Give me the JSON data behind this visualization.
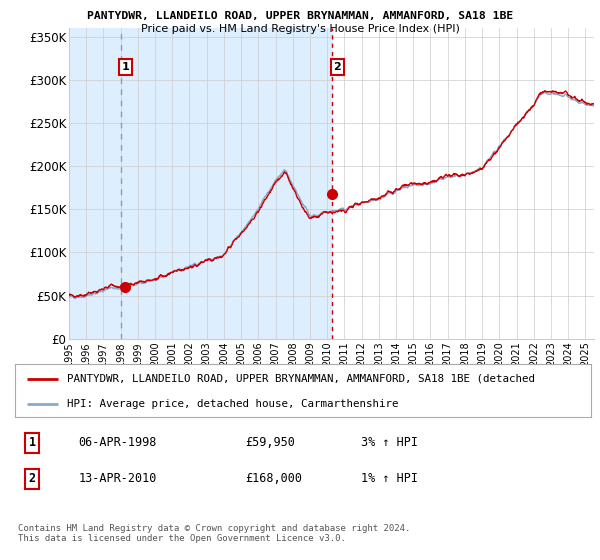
{
  "title1": "PANTYDWR, LLANDEILO ROAD, UPPER BRYNAMMAN, AMMANFORD, SA18 1BE",
  "title2": "Price paid vs. HM Land Registry's House Price Index (HPI)",
  "ylabel_ticks": [
    "£0",
    "£50K",
    "£100K",
    "£150K",
    "£200K",
    "£250K",
    "£300K",
    "£350K"
  ],
  "ylim": [
    0,
    360000
  ],
  "ytick_vals": [
    0,
    50000,
    100000,
    150000,
    200000,
    250000,
    300000,
    350000
  ],
  "legend_line1": "PANTYDWR, LLANDEILO ROAD, UPPER BRYNAMMAN, AMMANFORD, SA18 1BE (detached",
  "legend_line2": "HPI: Average price, detached house, Carmarthenshire",
  "annotation1_label": "1",
  "annotation1_date": "06-APR-1998",
  "annotation1_price": "£59,950",
  "annotation1_hpi": "3% ↑ HPI",
  "annotation2_label": "2",
  "annotation2_date": "13-APR-2010",
  "annotation2_price": "£168,000",
  "annotation2_hpi": "1% ↑ HPI",
  "copyright_text": "Contains HM Land Registry data © Crown copyright and database right 2024.\nThis data is licensed under the Open Government Licence v3.0.",
  "red_line_color": "#cc0000",
  "blue_line_color": "#88aacc",
  "bg_shaded_color": "#ddeeff",
  "dashed_line1_color": "#999999",
  "dashed_line2_color": "#cc0000",
  "sale1_x": 1998.27,
  "sale1_y": 59950,
  "sale2_x": 2010.28,
  "sale2_y": 168000,
  "vline1_x": 1998.0,
  "vline2_x": 2010.28,
  "xlim_left": 1995.0,
  "xlim_right": 2025.5
}
